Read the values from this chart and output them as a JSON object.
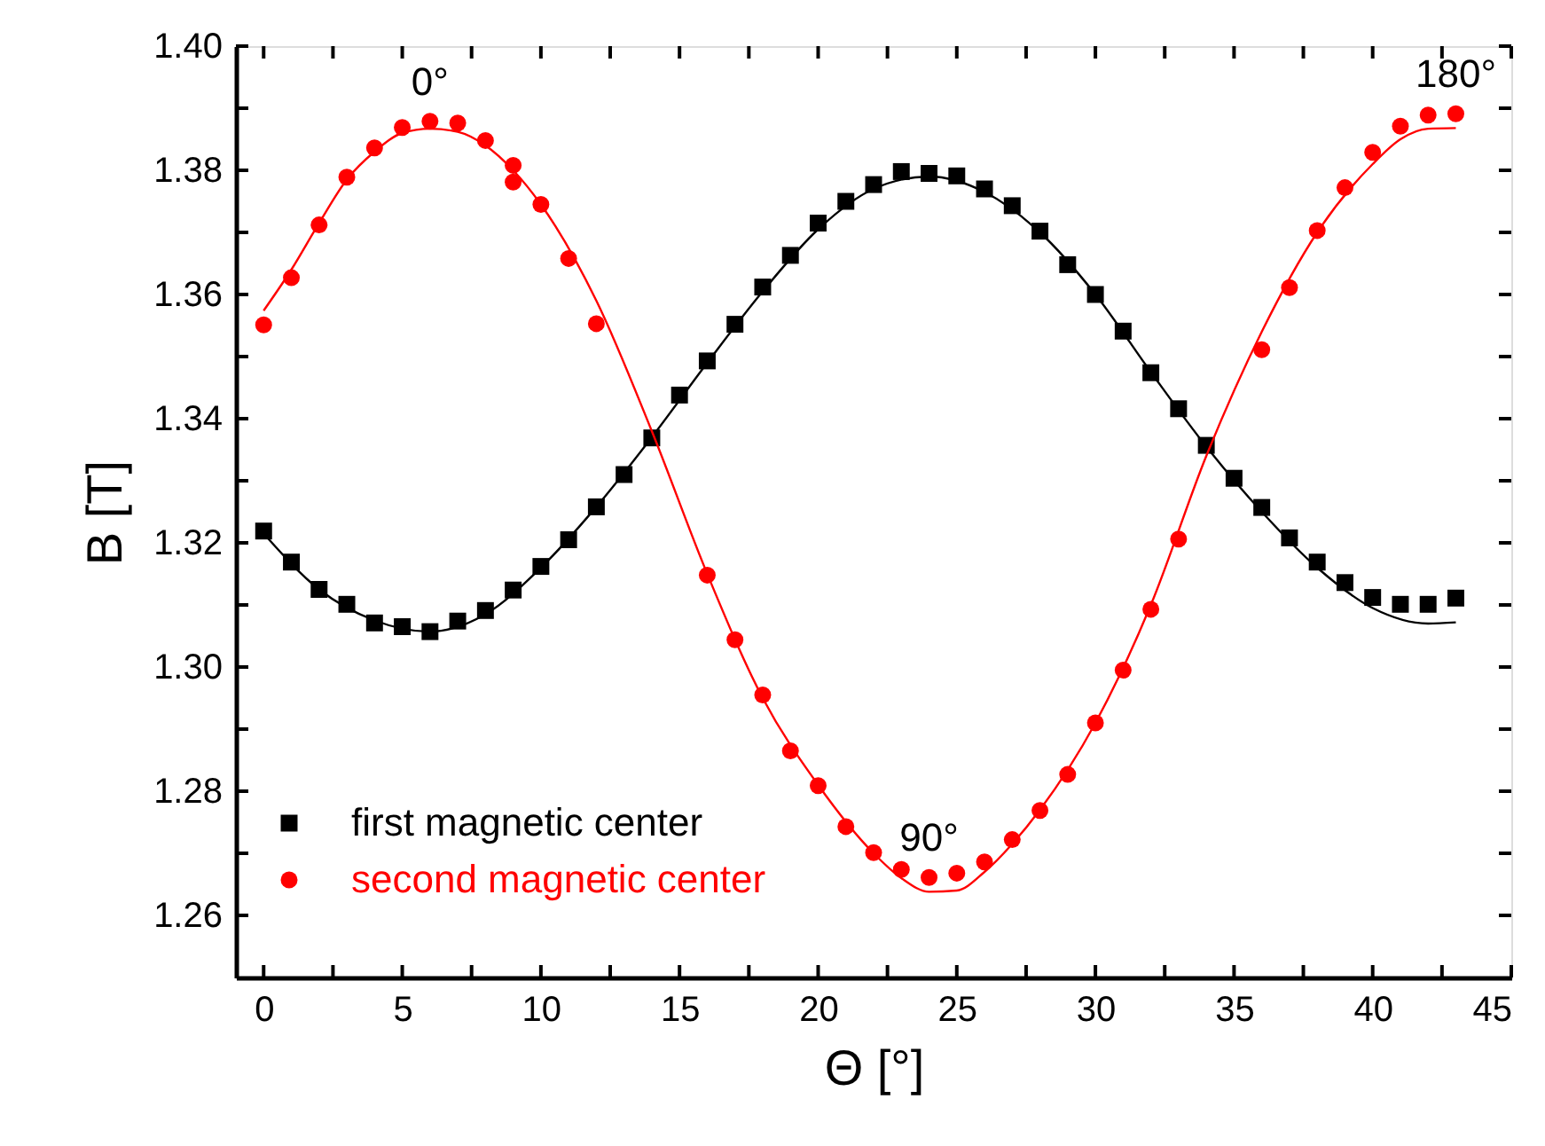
{
  "chart_data": {
    "type": "scatter",
    "xlabel": "Θ [°]",
    "ylabel": "B [T]",
    "xlim": [
      -1,
      45
    ],
    "ylim": [
      1.25,
      1.4
    ],
    "xticks": [
      0,
      {
        "value": 2.5,
        "label": null
      },
      5,
      {
        "value": 7.5,
        "label": null
      },
      10,
      {
        "value": 12.5,
        "label": null
      },
      15,
      {
        "value": 17.5,
        "label": null
      },
      20,
      {
        "value": 22.5,
        "label": null
      },
      25,
      {
        "value": 27.5,
        "label": null
      },
      30,
      {
        "value": 32.5,
        "label": null
      },
      35,
      {
        "value": 37.5,
        "label": null
      },
      40,
      {
        "value": 42.5,
        "label": null
      },
      45
    ],
    "yticks": [
      {
        "value": 1.26,
        "label": "1.26"
      },
      {
        "value": 1.27,
        "label": null
      },
      {
        "value": 1.28,
        "label": "1.28"
      },
      {
        "value": 1.29,
        "label": null
      },
      {
        "value": 1.3,
        "label": "1.30"
      },
      {
        "value": 1.31,
        "label": null
      },
      {
        "value": 1.32,
        "label": "1.32"
      },
      {
        "value": 1.33,
        "label": null
      },
      {
        "value": 1.34,
        "label": "1.34"
      },
      {
        "value": 1.35,
        "label": null
      },
      {
        "value": 1.36,
        "label": "1.36"
      },
      {
        "value": 1.37,
        "label": null
      },
      {
        "value": 1.38,
        "label": "1.38"
      },
      {
        "value": 1.39,
        "label": null
      },
      {
        "value": 1.4,
        "label": "1.40"
      }
    ],
    "grid": false,
    "legend": "bottom left",
    "series": [
      {
        "name": "first magnetic center",
        "type": "scatter",
        "marker": "square",
        "color": "#000000",
        "x": [
          0,
          1,
          2,
          3,
          4,
          5,
          6,
          7,
          8,
          9,
          10,
          11,
          12,
          13,
          14,
          15,
          16,
          17,
          18,
          19,
          20,
          21,
          22,
          23,
          24,
          25,
          26,
          27,
          28,
          29,
          30,
          31,
          32,
          33,
          34,
          35,
          36,
          37,
          38,
          39,
          40,
          41,
          42,
          43
        ],
        "values": [
          1.3219,
          1.3169,
          1.3125,
          1.3101,
          1.3071,
          1.3065,
          1.3057,
          1.3074,
          1.3091,
          1.3124,
          1.3162,
          1.3205,
          1.3258,
          1.331,
          1.3369,
          1.3438,
          1.3493,
          1.3552,
          1.3612,
          1.3663,
          1.3715,
          1.375,
          1.3777,
          1.3798,
          1.3795,
          1.3791,
          1.377,
          1.3743,
          1.3702,
          1.3648,
          1.36,
          1.3541,
          1.3474,
          1.3416,
          1.3357,
          1.3304,
          1.3257,
          1.3208,
          1.3169,
          1.3136,
          1.3112,
          1.3101,
          1.3101,
          1.3111
        ]
      },
      {
        "type": "line",
        "color": "#000000",
        "x": [
          0,
          2,
          4,
          6,
          8,
          10,
          12,
          14,
          16,
          18,
          20,
          22,
          24,
          26,
          28,
          30,
          32,
          34,
          36,
          38,
          40,
          42,
          43
        ],
        "values": [
          1.3215,
          1.3125,
          1.3075,
          1.3057,
          1.3085,
          1.316,
          1.3258,
          1.337,
          1.349,
          1.3605,
          1.3705,
          1.377,
          1.379,
          1.3765,
          1.37,
          1.36,
          1.3475,
          1.3355,
          1.325,
          1.316,
          1.3095,
          1.307,
          1.3072
        ]
      },
      {
        "name": "second magnetic center",
        "type": "scatter",
        "marker": "circle",
        "color": "#ff0000",
        "x": [
          0,
          1,
          2,
          3,
          4,
          5,
          6,
          7,
          8,
          9,
          9,
          10,
          11,
          12,
          16,
          17,
          18,
          19,
          20,
          21,
          22,
          23,
          24,
          25,
          26,
          27,
          28,
          29,
          30,
          31,
          32,
          33,
          36,
          37,
          38,
          39,
          40,
          41,
          42,
          43
        ],
        "values": [
          1.3551,
          1.3627,
          1.3712,
          1.3789,
          1.3836,
          1.3869,
          1.3879,
          1.3876,
          1.3848,
          1.3808,
          1.3781,
          1.3745,
          1.3658,
          1.3553,
          1.3148,
          1.3044,
          1.2955,
          1.2865,
          1.2809,
          1.2743,
          1.2701,
          1.2674,
          1.2661,
          1.2668,
          1.2686,
          1.2722,
          1.2769,
          1.2827,
          1.291,
          1.2995,
          1.3093,
          1.3206,
          1.3511,
          1.3611,
          1.3703,
          1.3772,
          1.3829,
          1.3871,
          1.3889,
          1.3891
        ]
      },
      {
        "type": "line",
        "color": "#ff0000",
        "x": [
          0,
          1,
          2,
          3,
          4,
          5,
          6,
          7,
          8,
          9,
          10,
          12,
          14,
          16,
          18,
          20,
          22,
          23,
          24,
          25,
          26,
          27,
          28,
          30,
          32,
          34,
          36,
          38,
          40,
          41,
          42,
          43
        ],
        "values": [
          1.3574,
          1.364,
          1.3715,
          1.3785,
          1.383,
          1.386,
          1.3867,
          1.3862,
          1.384,
          1.38,
          1.3745,
          1.359,
          1.338,
          1.315,
          1.295,
          1.281,
          1.27,
          1.266,
          1.2638,
          1.264,
          1.267,
          1.2715,
          1.277,
          1.291,
          1.31,
          1.334,
          1.354,
          1.37,
          1.381,
          1.385,
          1.3867,
          1.3868
        ]
      }
    ],
    "annotations": [
      {
        "text": "0°",
        "x": 6,
        "y": 1.3879
      },
      {
        "text": "90°",
        "x": 24,
        "y": 1.2661
      },
      {
        "text": "180°",
        "x": 43,
        "y": 1.3891
      }
    ]
  }
}
